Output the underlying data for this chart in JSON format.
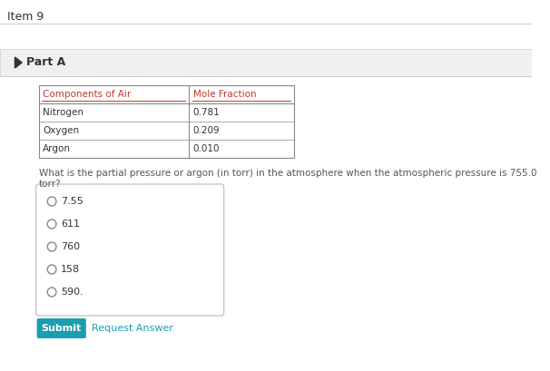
{
  "title": "Item 9",
  "part_label": "Part A",
  "table_headers": [
    "Components of Air",
    "Mole Fraction"
  ],
  "table_rows": [
    [
      "Nitrogen",
      "0.781"
    ],
    [
      "Oxygen",
      "0.209"
    ],
    [
      "Argon",
      "0.010"
    ]
  ],
  "question": "What is the partial pressure or argon (in torr) in the atmosphere when the atmospheric pressure is 755.0 torr?",
  "options": [
    "7.55",
    "611",
    "760",
    "158",
    "590."
  ],
  "submit_label": "Submit",
  "request_label": "Request Answer",
  "bg_color": "#ffffff",
  "part_bg_color": "#f0f0f0",
  "header_color": "#c0392b",
  "border_color": "#aaaaaa",
  "text_color": "#333333",
  "question_color": "#555555",
  "submit_bg": "#1a9eb0",
  "submit_text": "#ffffff",
  "request_color": "#1a9eb0",
  "triangle_color": "#333333",
  "item_title_color": "#333333"
}
